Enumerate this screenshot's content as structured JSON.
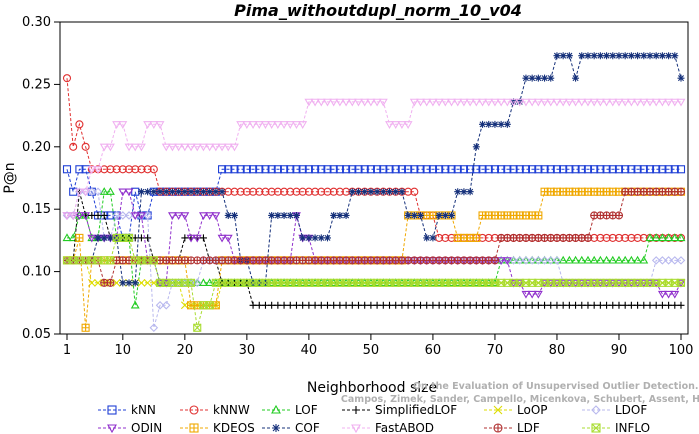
{
  "chart_data": {
    "type": "line",
    "title": "Pima_withoutdupl_norm_10_v04",
    "xlabel": "Neighborhood size",
    "ylabel": "P@n",
    "xlim": [
      1,
      100
    ],
    "ylim": [
      0.05,
      0.3
    ],
    "x_ticks": [
      1,
      10,
      20,
      30,
      40,
      50,
      60,
      70,
      80,
      90,
      100
    ],
    "y_ticks": [
      0.05,
      0.1,
      0.15,
      0.2,
      0.25,
      0.3
    ],
    "y_tick_labels": [
      "0.05",
      "0.10",
      "0.15",
      "0.20",
      "0.25",
      "0.30"
    ],
    "legend_position": "bottom",
    "watermark": [
      "Campos, Zimek, Sander, Campello, Micenkova, Schubert, Assent, Houle",
      "On the Evaluation of Unsupervised Outlier Detection. DAMI, 2015."
    ],
    "series": [
      {
        "name": "kNN",
        "color": "#1f3fd6",
        "marker": "square",
        "points": [
          [
            1,
            0.182
          ],
          [
            2,
            0.164
          ],
          [
            3,
            0.182
          ],
          [
            5,
            0.164
          ],
          [
            6,
            0.145
          ],
          [
            9,
            0.145
          ],
          [
            10,
            0.127
          ],
          [
            12,
            0.164
          ],
          [
            13,
            0.145
          ],
          [
            15,
            0.164
          ],
          [
            25,
            0.164
          ],
          [
            26,
            0.182
          ],
          [
            100,
            0.182
          ]
        ]
      },
      {
        "name": "kNNW",
        "color": "#e03030",
        "marker": "circle",
        "points": [
          [
            1,
            0.255
          ],
          [
            2,
            0.2
          ],
          [
            3,
            0.218
          ],
          [
            4,
            0.2
          ],
          [
            5,
            0.182
          ],
          [
            15,
            0.182
          ],
          [
            16,
            0.164
          ],
          [
            57,
            0.164
          ],
          [
            58,
            0.145
          ],
          [
            60,
            0.145
          ],
          [
            61,
            0.127
          ],
          [
            100,
            0.127
          ]
        ]
      },
      {
        "name": "LOF",
        "color": "#22cc22",
        "marker": "triangle-up",
        "points": [
          [
            1,
            0.127
          ],
          [
            3,
            0.145
          ],
          [
            5,
            0.127
          ],
          [
            7,
            0.164
          ],
          [
            9,
            0.127
          ],
          [
            12,
            0.073
          ],
          [
            13,
            0.109
          ],
          [
            16,
            0.091
          ],
          [
            70,
            0.091
          ],
          [
            71,
            0.109
          ],
          [
            94,
            0.109
          ],
          [
            95,
            0.127
          ],
          [
            100,
            0.127
          ]
        ]
      },
      {
        "name": "SimplifiedLOF",
        "color": "#000000",
        "marker": "plus",
        "points": [
          [
            1,
            0.109
          ],
          [
            3,
            0.164
          ],
          [
            4,
            0.145
          ],
          [
            6,
            0.145
          ],
          [
            8,
            0.127
          ],
          [
            14,
            0.127
          ],
          [
            15,
            0.109
          ],
          [
            20,
            0.127
          ],
          [
            24,
            0.109
          ],
          [
            26,
            0.091
          ],
          [
            30,
            0.091
          ],
          [
            31,
            0.073
          ],
          [
            100,
            0.073
          ]
        ]
      },
      {
        "name": "LoOP",
        "color": "#dddd00",
        "marker": "x",
        "points": [
          [
            1,
            0.109
          ],
          [
            3,
            0.109
          ],
          [
            5,
            0.091
          ],
          [
            10,
            0.091
          ],
          [
            20,
            0.073
          ],
          [
            25,
            0.073
          ],
          [
            26,
            0.091
          ],
          [
            100,
            0.091
          ]
        ]
      },
      {
        "name": "LDOF",
        "color": "#b8b8ee",
        "marker": "diamond",
        "points": [
          [
            1,
            0.145
          ],
          [
            3,
            0.164
          ],
          [
            6,
            0.164
          ],
          [
            7,
            0.127
          ],
          [
            9,
            0.145
          ],
          [
            13,
            0.145
          ],
          [
            15,
            0.055
          ],
          [
            16,
            0.073
          ],
          [
            18,
            0.091
          ],
          [
            20,
            0.091
          ],
          [
            23,
            0.109
          ],
          [
            80,
            0.109
          ],
          [
            81,
            0.091
          ],
          [
            95,
            0.091
          ],
          [
            96,
            0.109
          ],
          [
            100,
            0.109
          ]
        ]
      },
      {
        "name": "ODIN",
        "color": "#9030cc",
        "marker": "triangle-down",
        "points": [
          [
            1,
            0.145
          ],
          [
            2,
            0.145
          ],
          [
            5,
            0.127
          ],
          [
            10,
            0.164
          ],
          [
            12,
            0.145
          ],
          [
            14,
            0.109
          ],
          [
            16,
            0.091
          ],
          [
            18,
            0.145
          ],
          [
            21,
            0.127
          ],
          [
            23,
            0.145
          ],
          [
            26,
            0.127
          ],
          [
            28,
            0.109
          ],
          [
            37,
            0.109
          ],
          [
            38,
            0.145
          ],
          [
            39,
            0.127
          ],
          [
            41,
            0.109
          ],
          [
            72,
            0.109
          ],
          [
            73,
            0.091
          ],
          [
            75,
            0.082
          ],
          [
            78,
            0.091
          ],
          [
            95,
            0.091
          ],
          [
            97,
            0.082
          ],
          [
            100,
            0.091
          ]
        ]
      },
      {
        "name": "KDEOS",
        "color": "#f0a800",
        "marker": "square-cross",
        "points": [
          [
            1,
            0.109
          ],
          [
            3,
            0.127
          ],
          [
            4,
            0.055
          ],
          [
            5,
            0.109
          ],
          [
            20,
            0.109
          ],
          [
            21,
            0.073
          ],
          [
            25,
            0.073
          ],
          [
            26,
            0.109
          ],
          [
            55,
            0.109
          ],
          [
            56,
            0.145
          ],
          [
            63,
            0.145
          ],
          [
            64,
            0.127
          ],
          [
            67,
            0.127
          ],
          [
            68,
            0.145
          ],
          [
            77,
            0.145
          ],
          [
            78,
            0.164
          ],
          [
            100,
            0.164
          ]
        ]
      },
      {
        "name": "COF",
        "color": "#15307a",
        "marker": "asterisk",
        "points": [
          [
            1,
            0.109
          ],
          [
            5,
            0.109
          ],
          [
            6,
            0.127
          ],
          [
            10,
            0.091
          ],
          [
            13,
            0.164
          ],
          [
            26,
            0.164
          ],
          [
            27,
            0.145
          ],
          [
            29,
            0.109
          ],
          [
            31,
            0.091
          ],
          [
            34,
            0.145
          ],
          [
            37,
            0.145
          ],
          [
            39,
            0.127
          ],
          [
            43,
            0.127
          ],
          [
            44,
            0.145
          ],
          [
            47,
            0.164
          ],
          [
            55,
            0.164
          ],
          [
            56,
            0.145
          ],
          [
            59,
            0.127
          ],
          [
            61,
            0.145
          ],
          [
            64,
            0.164
          ],
          [
            67,
            0.2
          ],
          [
            68,
            0.218
          ],
          [
            72,
            0.218
          ],
          [
            73,
            0.236
          ],
          [
            75,
            0.255
          ],
          [
            79,
            0.255
          ],
          [
            80,
            0.273
          ],
          [
            83,
            0.255
          ],
          [
            84,
            0.273
          ],
          [
            99,
            0.273
          ],
          [
            100,
            0.255
          ]
        ]
      },
      {
        "name": "FastABOD",
        "color": "#f0b0f0",
        "marker": "triangle-inverted",
        "points": [
          [
            1,
            0.145
          ],
          [
            3,
            0.164
          ],
          [
            5,
            0.182
          ],
          [
            7,
            0.2
          ],
          [
            9,
            0.218
          ],
          [
            11,
            0.2
          ],
          [
            14,
            0.218
          ],
          [
            17,
            0.2
          ],
          [
            28,
            0.2
          ],
          [
            29,
            0.218
          ],
          [
            39,
            0.218
          ],
          [
            40,
            0.236
          ],
          [
            52,
            0.236
          ],
          [
            53,
            0.218
          ],
          [
            57,
            0.236
          ],
          [
            100,
            0.236
          ]
        ]
      },
      {
        "name": "LDF",
        "color": "#b03030",
        "marker": "circle-plus",
        "points": [
          [
            1,
            0.109
          ],
          [
            5,
            0.109
          ],
          [
            7,
            0.091
          ],
          [
            9,
            0.109
          ],
          [
            60,
            0.109
          ],
          [
            70,
            0.109
          ],
          [
            71,
            0.127
          ],
          [
            85,
            0.127
          ],
          [
            86,
            0.145
          ],
          [
            90,
            0.145
          ],
          [
            91,
            0.164
          ],
          [
            100,
            0.164
          ]
        ]
      },
      {
        "name": "INFLO",
        "color": "#a8dc30",
        "marker": "square-x",
        "points": [
          [
            1,
            0.109
          ],
          [
            6,
            0.109
          ],
          [
            9,
            0.127
          ],
          [
            12,
            0.109
          ],
          [
            16,
            0.091
          ],
          [
            21,
            0.091
          ],
          [
            22,
            0.055
          ],
          [
            23,
            0.073
          ],
          [
            25,
            0.091
          ],
          [
            100,
            0.091
          ]
        ]
      }
    ]
  }
}
